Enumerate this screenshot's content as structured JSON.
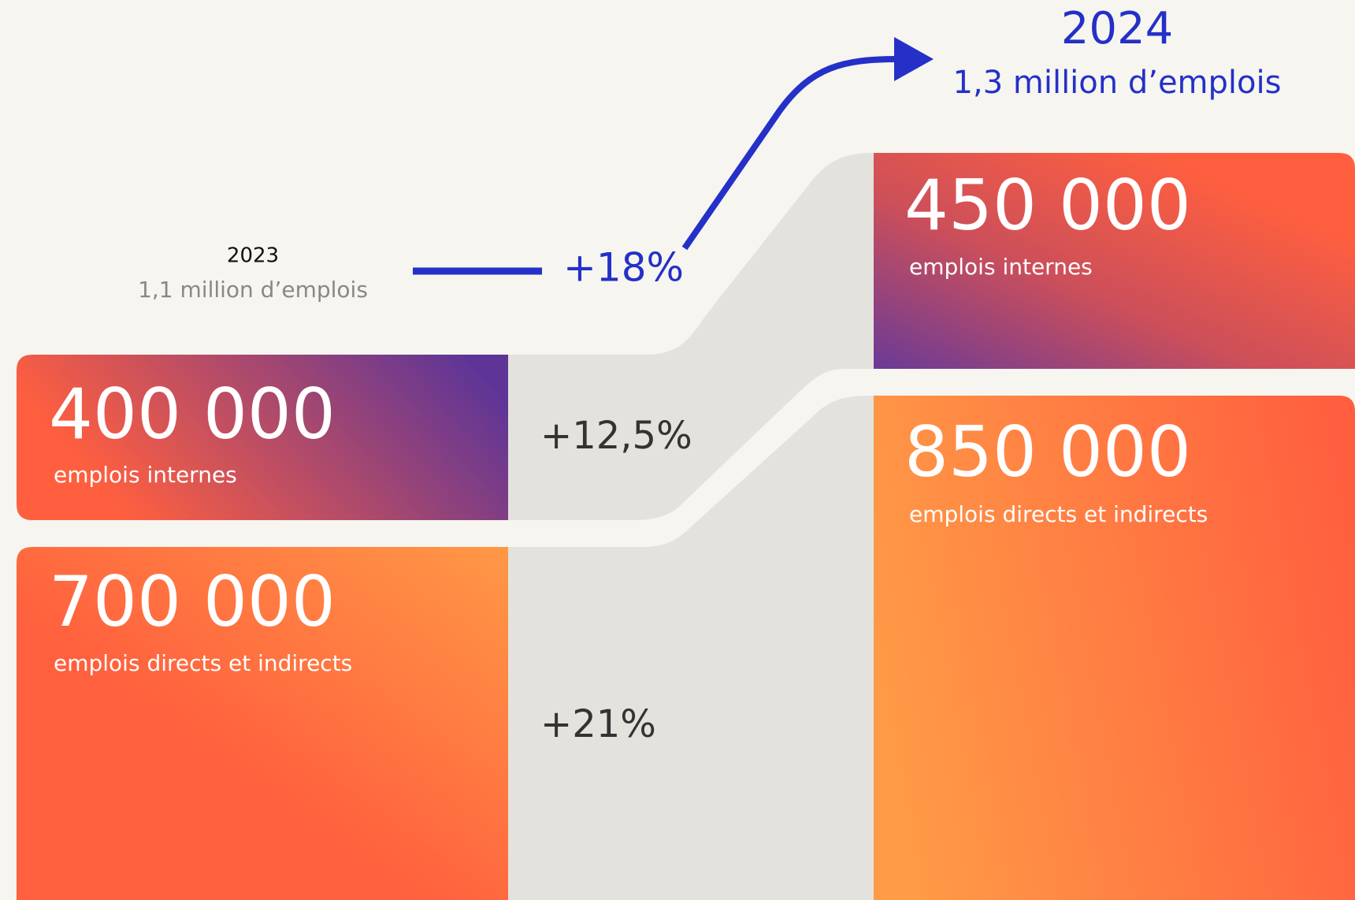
{
  "header": {
    "year_before": "2023",
    "total_before": "1,1 million d’emplois",
    "growth_total": "+18%",
    "year_after": "2024",
    "total_after": "1,3 million d’emplois"
  },
  "before": [
    {
      "value": "400 000",
      "label": "emplois internes"
    },
    {
      "value": "700 000",
      "label": "emplois directs et indirects"
    }
  ],
  "growth": [
    "+12,5%",
    "+21%"
  ],
  "after": [
    {
      "value": "450 000",
      "label": "emplois internes"
    },
    {
      "value": "850 000",
      "label": "emplois directs et indirects"
    }
  ]
}
